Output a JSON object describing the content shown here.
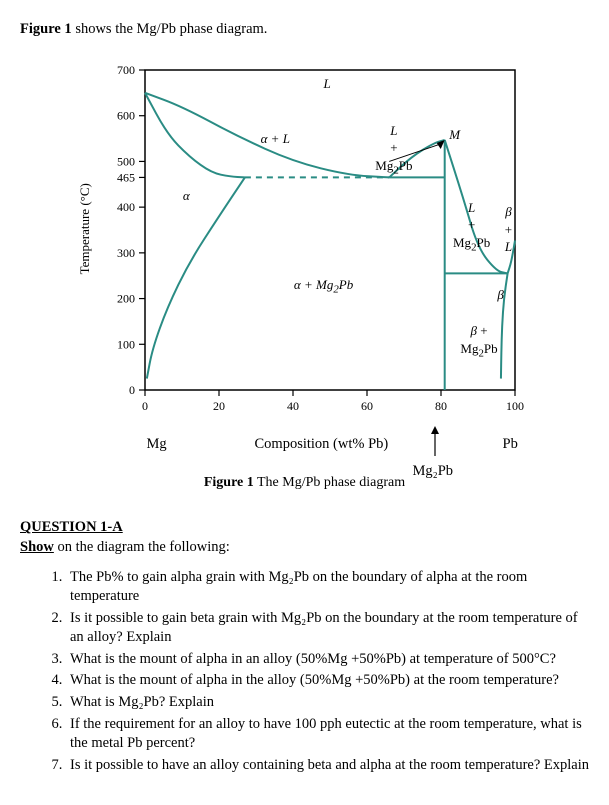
{
  "intro_prefix": "Figure 1",
  "intro_rest": " shows the Mg/Pb phase diagram.",
  "caption_prefix": "Figure 1",
  "caption_rest": " The Mg/Pb phase diagram",
  "diagram": {
    "type": "phase-diagram",
    "line_color": "#2a8c84",
    "axis_color": "#000000",
    "grid_color": "#555555",
    "background_color": "#ffffff",
    "xlim": [
      0,
      100
    ],
    "ylim": [
      0,
      700
    ],
    "xtick_step": 20,
    "ytick_labels": [
      0,
      100,
      200,
      300,
      400,
      465,
      500,
      600,
      700
    ],
    "ylabel": "Temperature (°C)",
    "xlabel": "Composition (wt% Pb)",
    "x_left_name": "Mg",
    "x_right_name": "Pb",
    "region_labels": {
      "L": "L",
      "alpha": "α",
      "alpha_L": "α + L",
      "L_Mg2Pb": "Mg₂Pb",
      "L_plus": "+",
      "L_small": "L",
      "M": "M",
      "alpha_Mg2Pb": "α + Mg₂Pb",
      "L_right": "L",
      "Mg2Pb_right": "Mg₂Pb",
      "beta_L": "β\n+\nL",
      "beta": "β",
      "beta_Mg2Pb": "β +\nMg₂Pb"
    },
    "Mg2Pb_pointer": "Mg₂Pb",
    "curves": {
      "liquidus_left": [
        [
          0,
          650
        ],
        [
          10,
          620
        ],
        [
          25,
          555
        ],
        [
          40,
          500
        ],
        [
          55,
          470
        ],
        [
          66,
          465
        ]
      ],
      "liquidus_right_peak": [
        [
          66,
          465
        ],
        [
          72,
          510
        ],
        [
          78,
          540
        ],
        [
          81,
          547
        ]
      ],
      "liquidus_beta": [
        [
          81,
          547
        ],
        [
          86,
          420
        ],
        [
          90,
          310
        ],
        [
          95,
          260
        ],
        [
          98,
          255
        ]
      ],
      "solidus_alpha": [
        [
          0,
          650
        ],
        [
          6,
          560
        ],
        [
          12,
          510
        ],
        [
          18,
          475
        ],
        [
          23,
          467
        ],
        [
          27,
          465
        ]
      ],
      "solvus_alpha": [
        [
          27,
          465
        ],
        [
          20,
          380
        ],
        [
          12,
          280
        ],
        [
          6,
          180
        ],
        [
          2,
          90
        ],
        [
          0.5,
          25
        ]
      ],
      "solvus_beta": [
        [
          98,
          255
        ],
        [
          97,
          200
        ],
        [
          96.5,
          140
        ],
        [
          96.3,
          80
        ],
        [
          96.2,
          25
        ]
      ],
      "beta_liquidus_small": [
        [
          98,
          255
        ],
        [
          99,
          280
        ],
        [
          100,
          327
        ]
      ],
      "eutectic_left_dash": [
        [
          27,
          465
        ],
        [
          66,
          465
        ]
      ],
      "vertical_Mg2Pb": [
        [
          81,
          0
        ],
        [
          81,
          547
        ]
      ],
      "eutectic_right": [
        [
          81,
          255
        ],
        [
          98,
          255
        ]
      ]
    }
  },
  "question_heading": "QUESTION 1-A",
  "show_prefix": "Show",
  "show_rest": " on the diagram the following:",
  "questions": [
    "The Pb% to gain alpha grain with Mg₂Pb on the boundary of alpha at the room temperature",
    "Is it possible to gain beta grain with Mg₂Pb on the boundary at the room temperature of an alloy? Explain",
    "What is the mount of alpha in an alloy (50%Mg +50%Pb) at temperature of 500°C?",
    "What is the mount of alpha in the alloy (50%Mg +50%Pb) at the room temperature?",
    "What is Mg₂Pb? Explain",
    "If the requirement for an alloy to have 100 pph eutectic at the room temperature, what is the metal Pb percent?",
    "Is it possible to have an alloy containing beta and alpha at the room temperature? Explain"
  ]
}
